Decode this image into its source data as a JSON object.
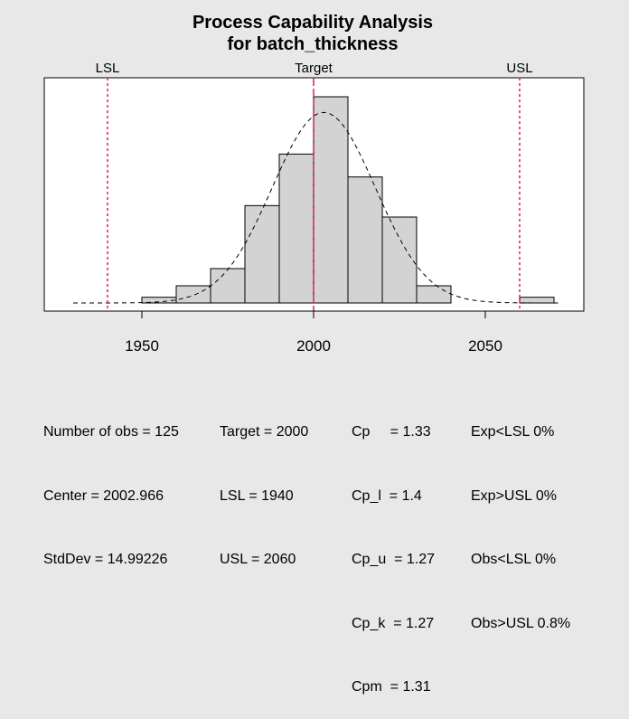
{
  "chart_data": {
    "type": "bar",
    "title": "Process Capability Analysis",
    "subtitle": "for batch_thickness",
    "xlabel": "",
    "ylabel": "",
    "xlim": [
      1925,
      2080
    ],
    "ylim": [
      0,
      0.0295
    ],
    "x_ticks": [
      1950,
      2000,
      2050
    ],
    "bins": [
      {
        "from": 1950,
        "to": 1960,
        "density": 0.0008
      },
      {
        "from": 1960,
        "to": 1970,
        "density": 0.0024
      },
      {
        "from": 1970,
        "to": 1980,
        "density": 0.0048
      },
      {
        "from": 1980,
        "to": 1990,
        "density": 0.0136
      },
      {
        "from": 1990,
        "to": 2000,
        "density": 0.0208
      },
      {
        "from": 2000,
        "to": 2010,
        "density": 0.0288
      },
      {
        "from": 2010,
        "to": 2020,
        "density": 0.0176
      },
      {
        "from": 2020,
        "to": 2030,
        "density": 0.012
      },
      {
        "from": 2030,
        "to": 2040,
        "density": 0.0024
      },
      {
        "from": 2040,
        "to": 2050,
        "density": 0.0
      },
      {
        "from": 2050,
        "to": 2060,
        "density": 0.0
      },
      {
        "from": 2060,
        "to": 2070,
        "density": 0.0008
      }
    ],
    "normal_curve": {
      "mean": 2002.966,
      "sd": 14.99226,
      "from": 1930,
      "to": 2072
    },
    "limits": [
      {
        "name": "LSL",
        "value": 1940
      },
      {
        "name": "Target",
        "value": 2000
      },
      {
        "name": "USL",
        "value": 2060
      }
    ],
    "colors": {
      "bar_fill": "#d3d3d3",
      "limit_line": "#e03050",
      "background": "#e8e8e8",
      "plot_bg": "#ffffff"
    },
    "grid": false,
    "legend": "none"
  },
  "stats": {
    "col1": [
      "Number of obs = 125",
      "Center = 2002.966",
      "StdDev = 14.99226"
    ],
    "col2": [
      "Target = 2000",
      "LSL = 1940",
      "USL = 2060"
    ],
    "col3": [
      "Cp     = 1.33",
      "Cp_l  = 1.4",
      "Cp_u  = 1.27",
      "Cp_k  = 1.27",
      "Cpm  = 1.31"
    ],
    "col4": [
      "Exp<LSL 0%",
      "Exp>USL 0%",
      "Obs<LSL 0%",
      "Obs>USL 0.8%"
    ]
  }
}
